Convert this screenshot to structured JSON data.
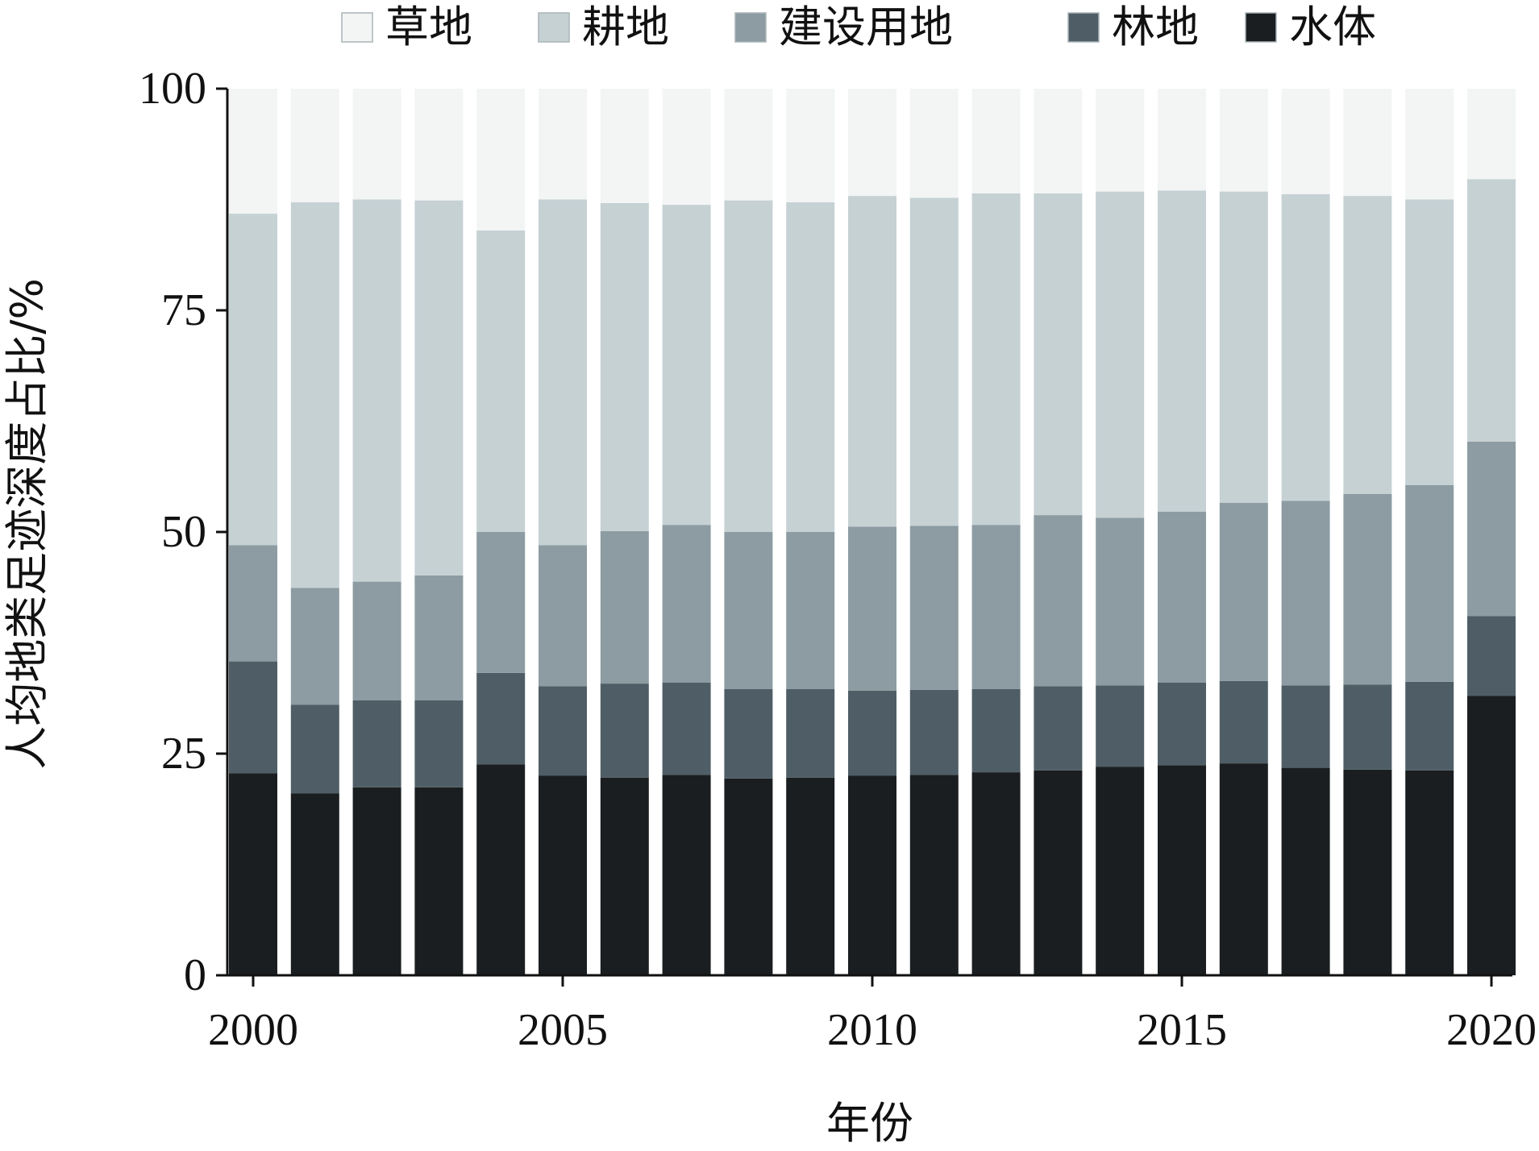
{
  "chart_data": {
    "type": "bar",
    "stacked": true,
    "categories": [
      "2000",
      "2001",
      "2002",
      "2003",
      "2004",
      "2005",
      "2006",
      "2007",
      "2008",
      "2009",
      "2010",
      "2011",
      "2012",
      "2013",
      "2014",
      "2015",
      "2016",
      "2017",
      "2018",
      "2019",
      "2020"
    ],
    "x_tick_labels": [
      "2000",
      "2005",
      "2010",
      "2015",
      "2020"
    ],
    "y_tick_labels": [
      "0",
      "25",
      "50",
      "75",
      "100"
    ],
    "xlabel": "年份",
    "ylabel": "人均地类足迹深度占比/%",
    "ylim": [
      0,
      100
    ],
    "legend_position": "top",
    "grid": false,
    "series": [
      {
        "name": "水体",
        "color": "#1a1e20",
        "values": [
          22.8,
          20.5,
          21.2,
          21.2,
          23.8,
          22.5,
          22.3,
          22.6,
          22.2,
          22.3,
          22.5,
          22.6,
          22.9,
          23.1,
          23.5,
          23.7,
          23.9,
          23.4,
          23.2,
          23.1,
          31.5
        ]
      },
      {
        "name": "林地",
        "color": "#4f5e66",
        "values": [
          12.6,
          10.0,
          9.8,
          9.8,
          10.3,
          10.1,
          10.6,
          10.4,
          10.1,
          10.0,
          9.6,
          9.6,
          9.4,
          9.5,
          9.2,
          9.3,
          9.3,
          9.3,
          9.6,
          10.0,
          9.0
        ]
      },
      {
        "name": "建设用地",
        "color": "#8c9ca2",
        "values": [
          13.1,
          13.2,
          13.4,
          14.1,
          15.9,
          15.9,
          17.2,
          17.8,
          17.7,
          17.7,
          18.5,
          18.5,
          18.5,
          19.3,
          18.9,
          19.3,
          20.1,
          20.8,
          21.5,
          22.2,
          19.7
        ]
      },
      {
        "name": "耕地",
        "color": "#c6d1d4",
        "values": [
          37.4,
          43.5,
          43.1,
          42.3,
          34.0,
          39.0,
          37.0,
          36.1,
          37.4,
          37.2,
          37.3,
          37.0,
          37.4,
          36.3,
          36.8,
          36.2,
          35.1,
          34.6,
          33.6,
          32.2,
          29.6
        ]
      },
      {
        "name": "草地",
        "color": "#f3f5f5",
        "values": [
          14.1,
          12.8,
          12.5,
          12.6,
          16.0,
          12.5,
          12.9,
          13.1,
          12.6,
          12.8,
          12.1,
          12.3,
          11.8,
          11.8,
          11.6,
          11.5,
          11.6,
          11.9,
          12.1,
          12.5,
          10.2
        ]
      }
    ],
    "legend_order": [
      "草地",
      "耕地",
      "建设用地",
      "林地",
      "水体"
    ]
  }
}
